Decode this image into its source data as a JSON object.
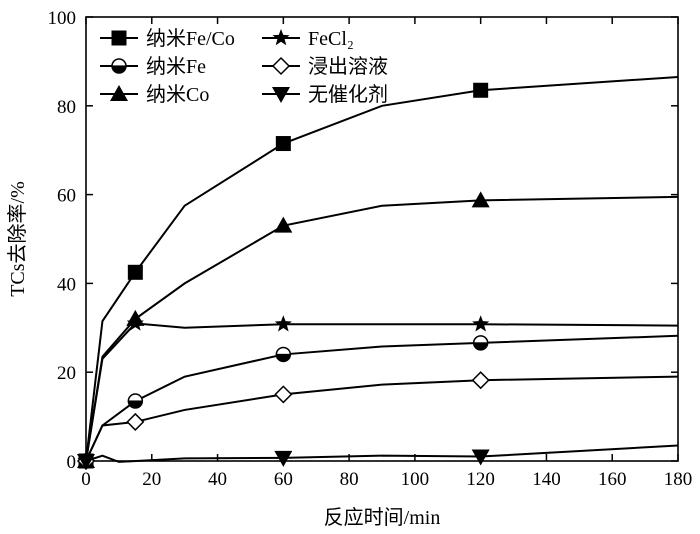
{
  "chart_data": {
    "type": "line",
    "xlabel": "反应时间/min",
    "ylabel": "TCs去除率/%",
    "xlim": [
      0,
      180
    ],
    "ylim": [
      0,
      100
    ],
    "xticks": [
      0,
      20,
      40,
      60,
      80,
      100,
      120,
      140,
      160,
      180
    ],
    "yticks": [
      0,
      20,
      40,
      60,
      80,
      100
    ],
    "grid": false,
    "legend_position": "top-left",
    "series": [
      {
        "name": "纳米Fe/Co",
        "marker": "filled-square",
        "x": [
          0,
          5,
          15,
          30,
          60,
          90,
          120,
          180
        ],
        "y": [
          0,
          31.5,
          42.5,
          57.5,
          71.5,
          80,
          83.5,
          86.5
        ],
        "marker_x": [
          0,
          15,
          60,
          120
        ],
        "marker_y": [
          0,
          42.5,
          71.5,
          83.5
        ]
      },
      {
        "name": "纳米Fe",
        "marker": "half-filled-circle",
        "x": [
          0,
          5,
          15,
          30,
          60,
          90,
          120,
          180
        ],
        "y": [
          0,
          8,
          13.5,
          19,
          24,
          25.8,
          26.6,
          28.2
        ],
        "marker_x": [
          0,
          15,
          60,
          120
        ],
        "marker_y": [
          0,
          13.5,
          24,
          26.6
        ]
      },
      {
        "name": "纳米Co",
        "marker": "filled-triangle-up",
        "x": [
          0,
          5,
          15,
          30,
          60,
          90,
          120,
          180
        ],
        "y": [
          0,
          23.5,
          32,
          40,
          53,
          57.5,
          58.7,
          59.5
        ],
        "marker_x": [
          0,
          15,
          60,
          120
        ],
        "marker_y": [
          0,
          32,
          53,
          58.7
        ]
      },
      {
        "name": "FeCl₂",
        "marker": "filled-star",
        "x": [
          0,
          5,
          15,
          30,
          60,
          90,
          120,
          180
        ],
        "y": [
          0,
          23,
          31,
          30,
          30.8,
          30.8,
          30.8,
          30.5
        ],
        "marker_x": [
          0,
          15,
          60,
          120
        ],
        "marker_y": [
          0,
          31,
          30.8,
          30.8
        ]
      },
      {
        "name": "浸出溶液",
        "marker": "open-diamond",
        "x": [
          0,
          5,
          15,
          30,
          60,
          90,
          120,
          180
        ],
        "y": [
          0,
          8,
          8.8,
          11.5,
          15,
          17.2,
          18.2,
          19
        ],
        "marker_x": [
          0,
          15,
          60,
          120
        ],
        "marker_y": [
          0,
          8.8,
          15,
          18.2
        ]
      },
      {
        "name": "无催化剂",
        "marker": "filled-triangle-down",
        "x": [
          0,
          5,
          10,
          30,
          60,
          90,
          120,
          180
        ],
        "y": [
          0,
          1.2,
          -0.2,
          0.6,
          0.7,
          1.2,
          1.0,
          3.5
        ],
        "marker_x": [
          0,
          60,
          120
        ],
        "marker_y": [
          0,
          0.7,
          1.0
        ]
      }
    ]
  }
}
